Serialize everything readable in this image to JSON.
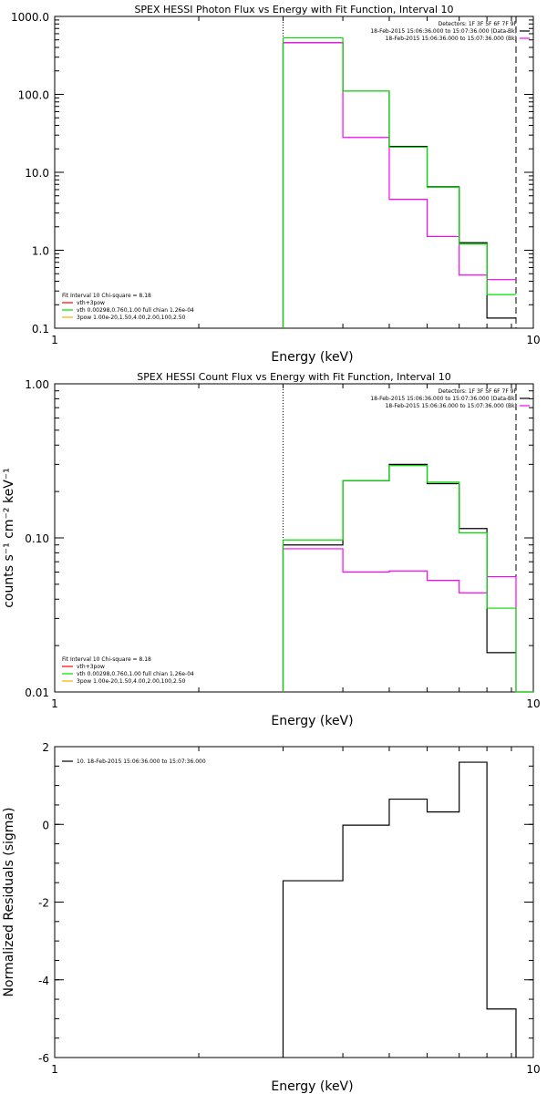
{
  "chart_data": [
    {
      "type": "line",
      "title": "SPEX HESSI Photon Flux vs Energy with Fit Function, Interval 10",
      "xlabel": "Energy (keV)",
      "ylabel": "",
      "x_scale": "log",
      "y_scale": "log",
      "xlim": [
        1,
        10
      ],
      "ylim": [
        0.1,
        1000
      ],
      "x_ticks": [
        {
          "v": 1,
          "label": "1"
        },
        {
          "v": 10,
          "label": "10"
        }
      ],
      "y_ticks": [
        {
          "v": 0.1,
          "label": "0.1"
        },
        {
          "v": 1,
          "label": "1.0"
        },
        {
          "v": 10,
          "label": "10.0"
        },
        {
          "v": 100,
          "label": "100.0"
        },
        {
          "v": 1000,
          "label": "1000.0"
        }
      ],
      "vlines": [
        {
          "x": 3.0,
          "style": "dotted",
          "color": "#000000"
        },
        {
          "x": 9.2,
          "style": "dashed",
          "color": "#000000"
        }
      ],
      "legend_right": [
        {
          "text": "Detectors: 1F 3F 5F 6F 7F 9F",
          "color": ""
        },
        {
          "text": "18-Feb-2015 15:06:36.000 to 15:07:36.000 (Data-Bk)",
          "color": "#000000"
        },
        {
          "text": "18-Feb-2015 15:06:36.000 to 15:07:36.000 (Bk)",
          "color": "#ff00ff"
        }
      ],
      "legend_left": [
        {
          "text": "Fit Interval 10   Chi-square = 8.18",
          "color": ""
        },
        {
          "text": "vth+3pow",
          "color": "#ff0000"
        },
        {
          "text": "vth 0.00298,0.760,1.00  full chian 1.26e-04",
          "color": "#00dd00"
        },
        {
          "text": "3pow 1.00e-20,1.50,4.00,2.00,100,2.50",
          "color": "#ffaa00"
        }
      ],
      "series": [
        {
          "color": "#000000",
          "edges": [
            3.0,
            4.0,
            5.0,
            6.0,
            7.0,
            8.0,
            9.2
          ],
          "values": [
            460,
            110,
            21.5,
            6.5,
            1.25,
            0.135
          ]
        },
        {
          "color": "#ff00ff",
          "edges": [
            3.0,
            4.0,
            5.0,
            6.0,
            7.0,
            8.0,
            9.2
          ],
          "values": [
            460,
            28,
            4.5,
            1.5,
            0.48,
            0.42
          ]
        },
        {
          "color": "#00dd00",
          "edges": [
            3.0,
            4.0,
            5.0,
            6.0,
            7.0,
            8.0,
            9.2
          ],
          "values": [
            530,
            110,
            21,
            6.4,
            1.2,
            0.27
          ]
        }
      ]
    },
    {
      "type": "line",
      "title": "SPEX HESSI Count Flux vs Energy with Fit Function, Interval 10",
      "xlabel": "Energy (keV)",
      "ylabel": "counts s⁻¹ cm⁻² keV⁻¹",
      "x_scale": "log",
      "y_scale": "log",
      "xlim": [
        1,
        10
      ],
      "ylim": [
        0.01,
        1
      ],
      "x_ticks": [
        {
          "v": 1,
          "label": "1"
        },
        {
          "v": 10,
          "label": "10"
        }
      ],
      "y_ticks": [
        {
          "v": 0.01,
          "label": "0.01"
        },
        {
          "v": 0.1,
          "label": "0.10"
        },
        {
          "v": 1,
          "label": "1.00"
        }
      ],
      "vlines": [
        {
          "x": 3.0,
          "style": "dotted",
          "color": "#000000"
        },
        {
          "x": 9.2,
          "style": "dashed",
          "color": "#000000"
        }
      ],
      "legend_right": [
        {
          "text": "Detectors: 1F 3F 5F 6F 7F 9F",
          "color": ""
        },
        {
          "text": "18-Feb-2015 15:06:36.000 to 15:07:36.000 (Data-Bk)",
          "color": "#000000"
        },
        {
          "text": "18-Feb-2015 15:06:36.000 to 15:07:36.000 (Bk)",
          "color": "#ff00ff"
        }
      ],
      "legend_left": [
        {
          "text": "Fit Interval 10   Chi-square = 8.18",
          "color": ""
        },
        {
          "text": "vth+3pow",
          "color": "#ff0000"
        },
        {
          "text": "vth 0.00298,0.760,1.00  full chian 1.26e-04",
          "color": "#00dd00"
        },
        {
          "text": "3pow 1.00e-20,1.50,4.00,2.00,100,2.50",
          "color": "#ffaa00"
        }
      ],
      "series": [
        {
          "color": "#000000",
          "edges": [
            3.0,
            4.0,
            5.0,
            6.0,
            7.0,
            8.0,
            9.2
          ],
          "values": [
            0.09,
            0.235,
            0.3,
            0.225,
            0.115,
            0.018
          ]
        },
        {
          "color": "#ff00ff",
          "edges": [
            3.0,
            4.0,
            5.0,
            6.0,
            7.0,
            8.0,
            9.2,
            10.0
          ],
          "values": [
            0.085,
            0.06,
            0.061,
            0.053,
            0.044,
            0.056,
            0.01
          ]
        },
        {
          "color": "#00dd00",
          "edges": [
            3.0,
            4.0,
            5.0,
            6.0,
            7.0,
            8.0,
            9.2,
            10.0
          ],
          "values": [
            0.097,
            0.235,
            0.295,
            0.23,
            0.108,
            0.035,
            0.01
          ]
        }
      ]
    },
    {
      "type": "line",
      "title": "",
      "xlabel": "Energy (keV)",
      "ylabel": "Normalized Residuals (sigma)",
      "x_scale": "log",
      "y_scale": "linear",
      "xlim": [
        1,
        10
      ],
      "ylim": [
        -6,
        2
      ],
      "x_ticks": [
        {
          "v": 1,
          "label": "1"
        },
        {
          "v": 10,
          "label": "10"
        }
      ],
      "y_ticks": [
        {
          "v": -6,
          "label": "-6"
        },
        {
          "v": -4,
          "label": "-4"
        },
        {
          "v": -2,
          "label": "-2"
        },
        {
          "v": 0,
          "label": "0"
        },
        {
          "v": 2,
          "label": "2"
        }
      ],
      "vlines": [],
      "legend_right": [],
      "legend_left": [
        {
          "text": "10. 18-Feb-2015 15:06:36.000 to 15:07:36.000",
          "color": "#000000"
        }
      ],
      "series": [
        {
          "color": "#000000",
          "edges": [
            3.0,
            4.0,
            5.0,
            6.0,
            7.0,
            8.0,
            9.2
          ],
          "values": [
            -1.45,
            -0.02,
            0.65,
            0.32,
            1.6,
            -4.75
          ],
          "drop_to_bottom": true
        }
      ]
    }
  ]
}
